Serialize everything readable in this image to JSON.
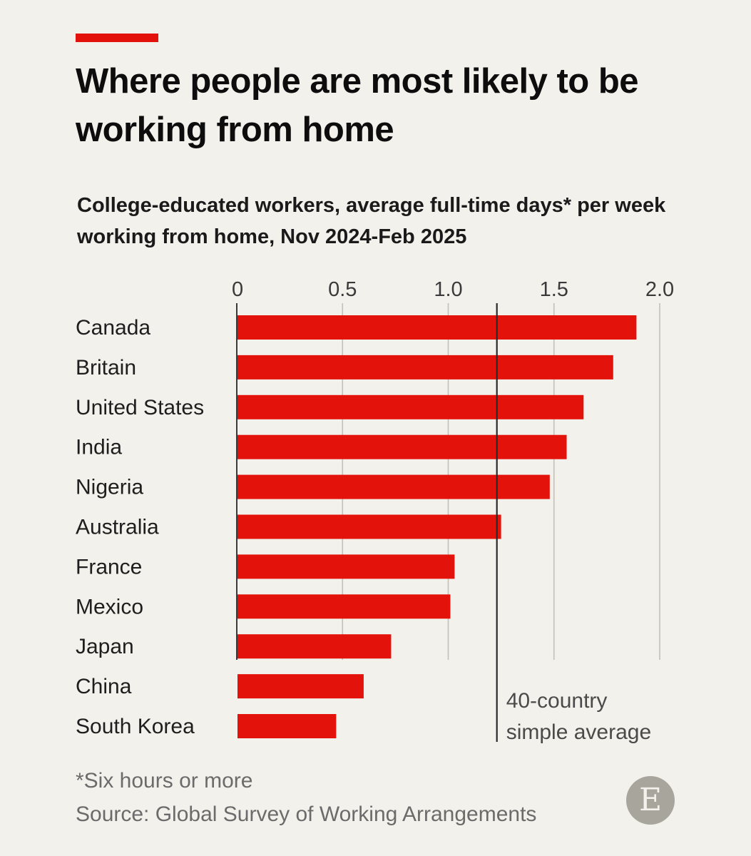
{
  "title": "Where people are most likely to be working from home",
  "subtitle": "College-educated workers, average full-time days* per week working from home, Nov 2024-Feb 2025",
  "footnote": "*Six hours or more",
  "source": "Source: Global Survey of Working Arrangements",
  "logo_letter": "E",
  "colors": {
    "accent": "#e3120b",
    "bar": "#e3120b",
    "background": "#f3f1ec",
    "grid": "#c4c1b8",
    "text": "#121212",
    "muted": "#6b6b6b"
  },
  "chart_data": {
    "type": "bar",
    "orientation": "horizontal",
    "categories": [
      "Canada",
      "Britain",
      "United States",
      "India",
      "Nigeria",
      "Australia",
      "France",
      "Mexico",
      "Japan",
      "China",
      "South Korea"
    ],
    "values": [
      1.89,
      1.78,
      1.64,
      1.56,
      1.48,
      1.25,
      1.03,
      1.01,
      0.73,
      0.6,
      0.47
    ],
    "xlim": [
      0,
      2.0
    ],
    "xticks": [
      0,
      0.5,
      1.0,
      1.5,
      2.0
    ],
    "xtick_labels": [
      "0",
      "0.5",
      "1.0",
      "1.5",
      "2.0"
    ],
    "reference_line": {
      "value": 1.23,
      "label_lines": [
        "40-country",
        "simple average"
      ]
    },
    "grid": true
  }
}
